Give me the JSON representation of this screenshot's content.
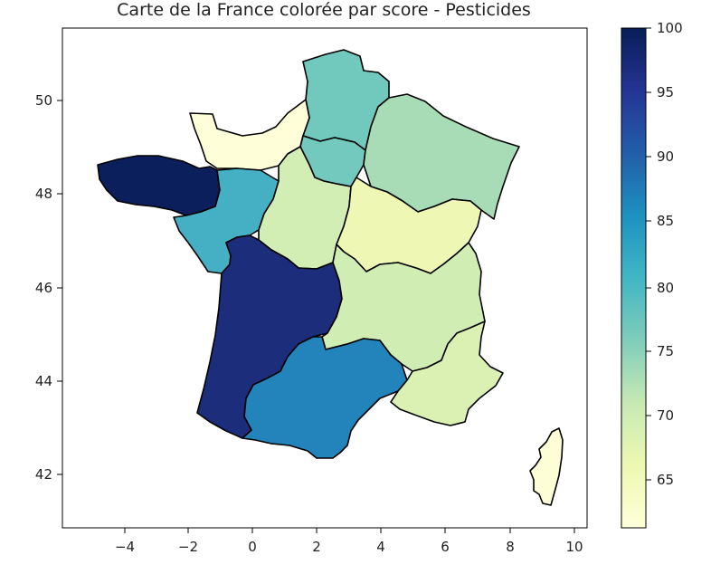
{
  "title": "Carte de la France colorée par score - Pesticides",
  "chart_data": {
    "type": "heatmap",
    "title": "Carte de la France colorée par score - Pesticides",
    "x_ticks": [
      "−4",
      "−2",
      "0",
      "2",
      "4",
      "6",
      "8",
      "10"
    ],
    "y_ticks": [
      "42",
      "44",
      "46",
      "48",
      "50"
    ],
    "xlim": [
      -5.9,
      10.3
    ],
    "ylim": [
      40.9,
      51.6
    ],
    "colorbar": {
      "colormap": "YlGnBu",
      "range": [
        61,
        100
      ],
      "ticks": [
        "65",
        "70",
        "75",
        "80",
        "85",
        "90",
        "95",
        "100"
      ]
    },
    "regions": [
      {
        "id": "bretagne",
        "score": 100,
        "color": "#0b1f5c"
      },
      {
        "id": "nouvelle-aquitaine",
        "score": 95,
        "color": "#1b2d7b"
      },
      {
        "id": "occitanie",
        "score": 83,
        "color": "#2383bb"
      },
      {
        "id": "pays-de-la-loire",
        "score": 78,
        "color": "#45b0c4"
      },
      {
        "id": "hauts-de-france",
        "score": 74,
        "color": "#71c8bd"
      },
      {
        "id": "ile-de-france",
        "score": 74,
        "color": "#73c9bd"
      },
      {
        "id": "grand-est",
        "score": 72,
        "color": "#a7dcb6"
      },
      {
        "id": "centre-val-de-loire",
        "score": 69,
        "color": "#d2eeb5"
      },
      {
        "id": "auvergne-rhone-alpes",
        "score": 69,
        "color": "#d0edb4"
      },
      {
        "id": "provence-alpes-cote-dazur",
        "score": 68,
        "color": "#daf1b3"
      },
      {
        "id": "bourgogne-franche-comte",
        "score": 65,
        "color": "#eef8b4"
      },
      {
        "id": "normandie",
        "score": 61,
        "color": "#feffd9"
      },
      {
        "id": "corse",
        "score": 61,
        "color": "#fefed6"
      }
    ]
  }
}
